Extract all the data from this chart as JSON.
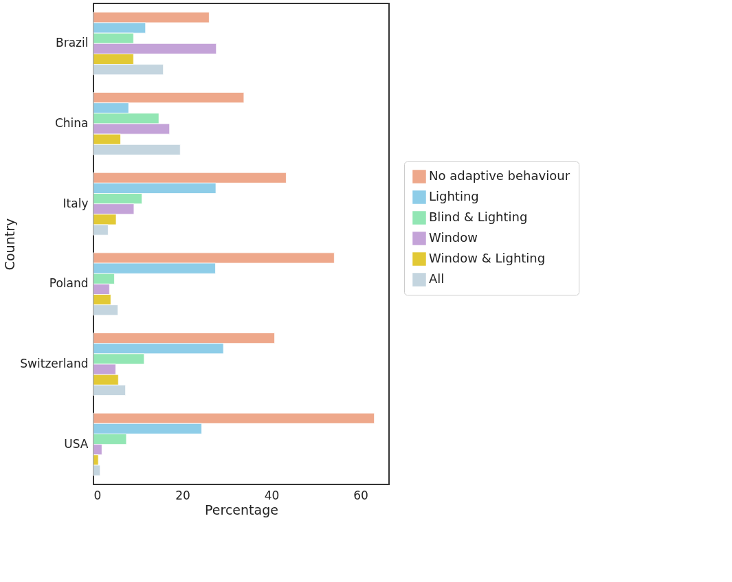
{
  "chart_data": {
    "type": "bar",
    "orientation": "horizontal",
    "xlabel": "Percentage",
    "ylabel": "Country",
    "categories": [
      "Brazil",
      "China",
      "Italy",
      "Poland",
      "Switzerland",
      "USA"
    ],
    "series": [
      {
        "name": "No adaptive behaviour",
        "color": "#eea88b",
        "values": [
          26.0,
          33.8,
          43.3,
          54.1,
          40.7,
          63.1
        ]
      },
      {
        "name": "Lighting",
        "color": "#8ecde8",
        "values": [
          11.7,
          7.9,
          27.5,
          27.4,
          29.2,
          24.3
        ]
      },
      {
        "name": "Blind & Lighting",
        "color": "#92e6b4",
        "values": [
          9.0,
          14.7,
          10.9,
          4.7,
          11.4,
          7.4
        ]
      },
      {
        "name": "Window",
        "color": "#c4a3d8",
        "values": [
          27.6,
          17.1,
          9.1,
          3.6,
          5.0,
          1.9
        ]
      },
      {
        "name": "Window & Lighting",
        "color": "#e2c935",
        "values": [
          9.0,
          6.1,
          5.1,
          3.9,
          5.6,
          1.1
        ]
      },
      {
        "name": "All",
        "color": "#c4d5df",
        "values": [
          15.7,
          19.5,
          3.3,
          5.5,
          7.2,
          1.5
        ]
      }
    ],
    "xlim": [
      0,
      66.4
    ],
    "xticks": [
      0,
      20,
      40,
      60
    ],
    "grid": false,
    "legend": "right"
  }
}
